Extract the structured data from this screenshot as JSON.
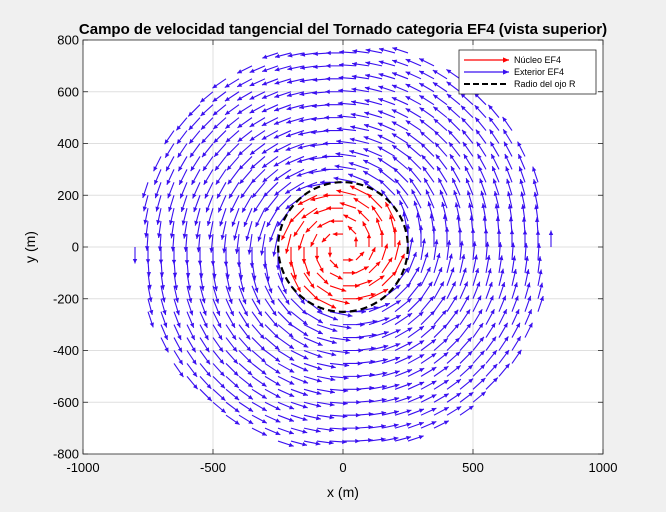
{
  "chart_data": {
    "type": "quiver",
    "title": "Campo de velocidad tangencial del Tornado categoria EF4 (vista superior)",
    "xlabel": "x (m)",
    "ylabel": "y (m)",
    "xlim": [
      -1000,
      1000
    ],
    "ylim": [
      -800,
      800
    ],
    "xticks": [
      -1000,
      -500,
      0,
      500,
      1000
    ],
    "yticks": [
      -800,
      -600,
      -400,
      -200,
      0,
      200,
      400,
      600,
      800
    ],
    "xtick_labels": [
      "-1000",
      "-500",
      "0",
      "500",
      "1000"
    ],
    "ytick_labels": [
      "-800",
      "-600",
      "-400",
      "-200",
      "0",
      "200",
      "400",
      "600",
      "800"
    ],
    "grid": true,
    "legend_position": "top-right",
    "eye_radius": 250,
    "grid_spacing": 50,
    "outer_radius_max": 800,
    "rotation": "counterclockwise",
    "series": [
      {
        "name": "Núcleo EF4",
        "color": "#ff0000",
        "region": "r < 250"
      },
      {
        "name": "Exterior EF4",
        "color": "#3a10f0",
        "region": "r >= 250"
      },
      {
        "name": "Radio del ojo R",
        "color": "#000000",
        "style": "dashed circle"
      }
    ]
  }
}
